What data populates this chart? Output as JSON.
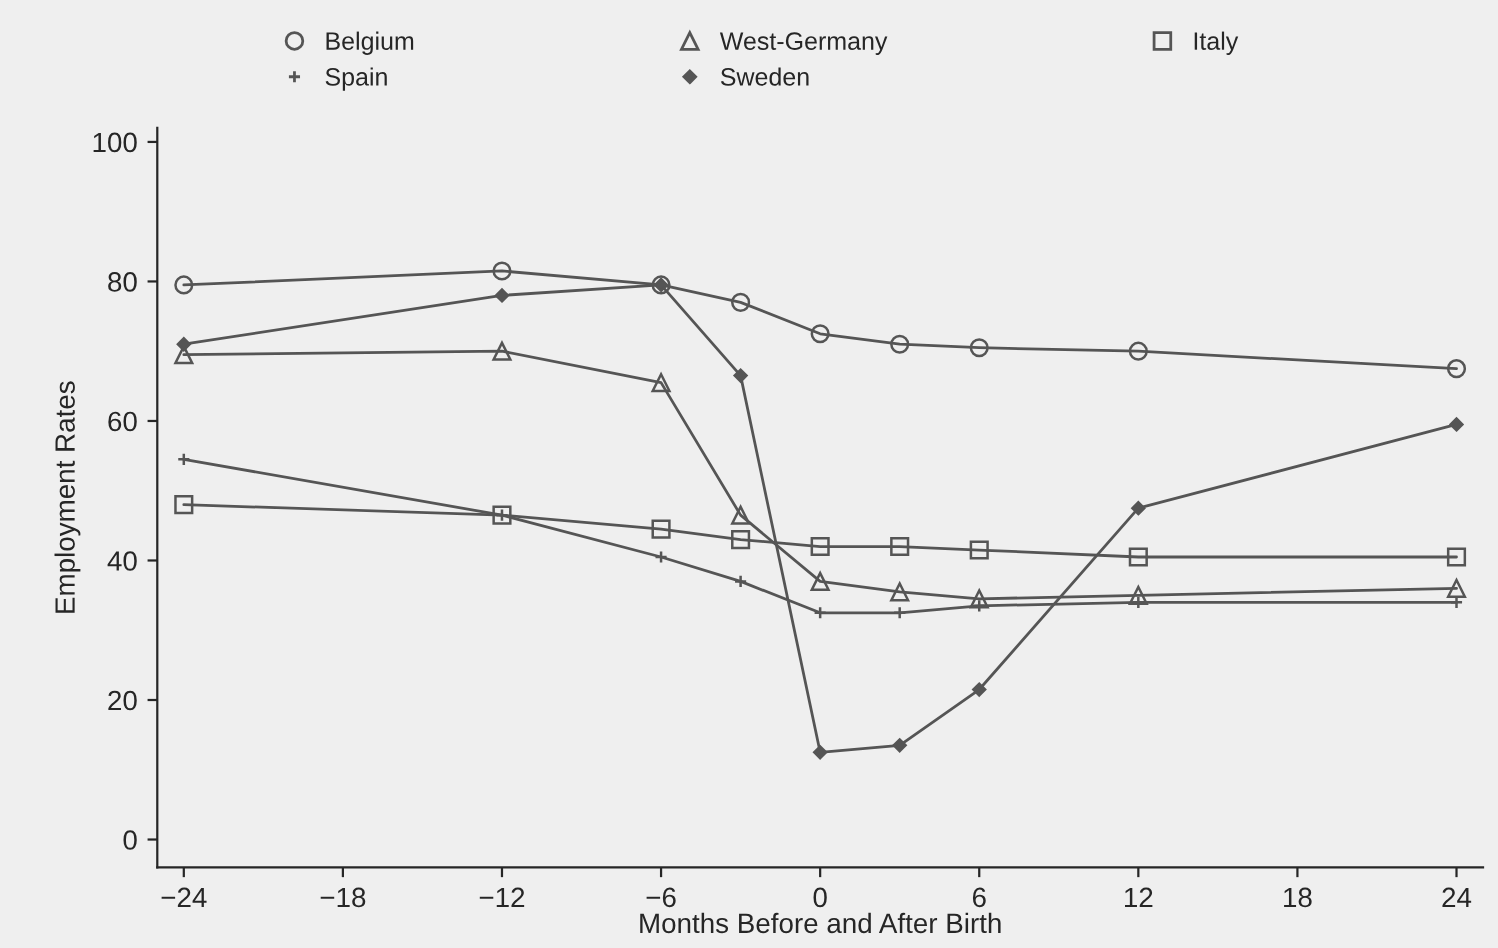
{
  "chart_data": {
    "type": "line",
    "xlabel": "Months Before and After Birth",
    "ylabel": "Employment Rates",
    "x": [
      -24,
      -12,
      -6,
      -3,
      0,
      3,
      6,
      12,
      24
    ],
    "series": [
      {
        "name": "Belgium",
        "color": "#555555",
        "marker": "circle",
        "values": [
          79.5,
          81.5,
          79.5,
          77,
          72.5,
          71,
          70.5,
          70,
          67.5
        ]
      },
      {
        "name": "West-Germany",
        "color": "#555555",
        "marker": "triangle",
        "values": [
          69.5,
          70,
          65.5,
          46.5,
          37,
          35.5,
          34.5,
          35,
          36
        ]
      },
      {
        "name": "Italy",
        "color": "#555555",
        "marker": "square",
        "values": [
          48,
          46.5,
          44.5,
          43,
          42,
          42,
          41.5,
          40.5,
          40.5
        ]
      },
      {
        "name": "Spain",
        "color": "#555555",
        "marker": "cross",
        "values": [
          54.5,
          46.5,
          40.5,
          37,
          32.5,
          32.5,
          33.5,
          34,
          34
        ]
      },
      {
        "name": "Sweden",
        "color": "#555555",
        "marker": "diamond",
        "values": [
          71,
          78,
          79.5,
          66.5,
          12.5,
          13.5,
          21.5,
          47.5,
          59.5
        ]
      }
    ],
    "xlim": [
      -25,
      25
    ],
    "xticks": [
      -24,
      -18,
      -12,
      -6,
      0,
      6,
      12,
      18,
      24
    ],
    "ylim": [
      -4,
      102
    ],
    "yticks": [
      0,
      20,
      40,
      60,
      80,
      100
    ],
    "grid": false,
    "legend": "top",
    "line_style": "solid"
  }
}
